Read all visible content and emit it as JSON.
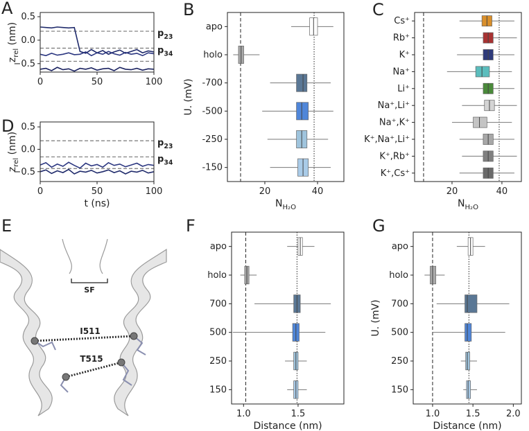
{
  "chart_data": [
    {
      "type": "line",
      "panel_label": "A",
      "ylabel": [
        "z",
        "rel",
        " (nm)"
      ],
      "x": [
        0,
        5,
        10,
        15,
        20,
        25,
        30,
        35,
        40,
        45,
        50,
        55,
        60,
        65,
        70,
        75,
        80,
        85,
        90,
        95,
        100
      ],
      "xlim": [
        0,
        100
      ],
      "xticks": [
        0,
        50,
        100
      ],
      "ylim": [
        -0.68,
        0.59
      ],
      "yticks": [
        0.5,
        {
          "value": 0,
          "label": "0.0"
        },
        {
          "value": -0.5,
          "label": "−0.5"
        }
      ],
      "series": [
        {
          "color": "#1f2a6b",
          "values": [
            0.28,
            0.27,
            0.26,
            0.28,
            0.27,
            0.26,
            0.27,
            -0.24,
            -0.28,
            -0.2,
            -0.27,
            -0.22,
            -0.3,
            -0.25,
            -0.21,
            -0.28,
            -0.24,
            -0.2,
            -0.27,
            -0.23,
            -0.25
          ]
        },
        {
          "color": "#2b3680",
          "values": [
            -0.3,
            -0.33,
            -0.28,
            -0.32,
            -0.3,
            -0.27,
            -0.31,
            -0.3,
            -0.25,
            -0.33,
            -0.27,
            -0.3,
            -0.24,
            -0.29,
            -0.32,
            -0.26,
            -0.3,
            -0.28,
            -0.33,
            -0.27,
            -0.29
          ]
        },
        {
          "color": "#1a2260",
          "values": [
            -0.62,
            -0.6,
            -0.65,
            -0.58,
            -0.63,
            -0.61,
            -0.66,
            -0.6,
            -0.62,
            -0.59,
            -0.64,
            -0.61,
            -0.6,
            -0.65,
            -0.58,
            -0.62,
            -0.63,
            -0.6,
            -0.64,
            -0.61,
            -0.62
          ]
        }
      ],
      "ref_lines": [
        {
          "value": 0.19,
          "label": [
            "p",
            "23"
          ]
        },
        {
          "value": -0.17,
          "label": [
            "p",
            "34"
          ]
        },
        {
          "value": -0.45
        }
      ]
    },
    {
      "type": "line",
      "panel_label": "D",
      "ylabel": [
        "z",
        "rel",
        " (nm)"
      ],
      "xlabel": "t (ns)",
      "x": [
        0,
        5,
        10,
        15,
        20,
        25,
        30,
        35,
        40,
        45,
        50,
        55,
        60,
        65,
        70,
        75,
        80,
        85,
        90,
        95,
        100
      ],
      "xlim": [
        0,
        100
      ],
      "xticks": [
        0,
        50,
        100
      ],
      "ylim": [
        -0.72,
        0.61
      ],
      "yticks": [
        0.5,
        {
          "value": 0,
          "label": "0.0"
        },
        {
          "value": -0.5,
          "label": "−0.5"
        }
      ],
      "series": [
        {
          "color": "#2b3680",
          "values": [
            -0.35,
            -0.3,
            -0.4,
            -0.33,
            -0.38,
            -0.29,
            -0.36,
            -0.42,
            -0.31,
            -0.37,
            -0.34,
            -0.4,
            -0.3,
            -0.36,
            -0.33,
            -0.39,
            -0.35,
            -0.31,
            -0.38,
            -0.34,
            -0.36
          ]
        },
        {
          "color": "#1f2a6b",
          "values": [
            -0.5,
            -0.46,
            -0.54,
            -0.48,
            -0.52,
            -0.45,
            -0.55,
            -0.49,
            -0.51,
            -0.47,
            -0.53,
            -0.5,
            -0.46,
            -0.52,
            -0.48,
            -0.55,
            -0.49,
            -0.51,
            -0.47,
            -0.53,
            -0.5
          ]
        }
      ],
      "ref_lines": [
        {
          "value": 0.19,
          "label": [
            "p",
            "23"
          ]
        },
        {
          "value": -0.17,
          "label": [
            "p",
            "34"
          ]
        },
        {
          "value": -0.43
        }
      ]
    },
    {
      "type": "boxen",
      "panel_label": "B",
      "ylabel": "U. (mV)",
      "xlabel": [
        "N",
        "H₂O"
      ],
      "categories": [
        "apo",
        "holo",
        "-700",
        "-500",
        "-250",
        "-150"
      ],
      "colors": [
        "#ffffff",
        "#a9a9a9",
        "#5a7795",
        "#4f86d9",
        "#9fc4dd",
        "#a9cbe8"
      ],
      "median": [
        38.5,
        11,
        34.5,
        34,
        34,
        34.5
      ],
      "q1": [
        37,
        10,
        32,
        32,
        32,
        32.5
      ],
      "q3": [
        40,
        12,
        36,
        36.5,
        36,
        36.5
      ],
      "min": [
        30,
        8,
        22,
        19,
        21,
        22
      ],
      "max": [
        46,
        18,
        45,
        46,
        44,
        45
      ],
      "xlim": [
        5.8,
        50
      ],
      "xticks": [
        20,
        40
      ],
      "ref_lines": [
        {
          "value": 10.8,
          "style": "dashed"
        },
        {
          "value": 38.7,
          "style": "dotted"
        }
      ]
    },
    {
      "type": "boxen",
      "panel_label": "C",
      "xlabel": [
        "N",
        "H₂O"
      ],
      "categories": [
        "Cs⁺",
        "Rb⁺",
        "K⁺",
        "Na⁺",
        "Li⁺",
        "Na⁺,Li⁺",
        "Na⁺,K⁺",
        "K⁺,Na⁺,Li⁺",
        "K⁺,Rb⁺",
        "K⁺,Cs⁺"
      ],
      "colors": [
        "#d98f2b",
        "#a83232",
        "#2e3a7a",
        "#5bbdbd",
        "#4a8a3a",
        "#d4d4d4",
        "#c4c4c4",
        "#a8a8a8",
        "#808080",
        "#6a6a6a"
      ],
      "median": [
        34,
        34.5,
        34.5,
        32,
        34.5,
        35,
        31,
        34.5,
        34.5,
        34.5
      ],
      "q1": [
        32,
        32.5,
        32.5,
        29.5,
        32.5,
        33,
        28.5,
        32.5,
        32.5,
        32.5
      ],
      "q3": [
        36,
        36.5,
        36.5,
        35,
        36.5,
        37,
        34,
        36.5,
        36.5,
        36.5
      ],
      "min": [
        23,
        23,
        22,
        18,
        23,
        24,
        20,
        23,
        24,
        23
      ],
      "max": [
        45,
        46,
        45,
        44,
        45,
        46,
        44,
        45,
        46,
        45
      ],
      "xlim": [
        5,
        47.8
      ],
      "xticks": [
        20,
        40
      ],
      "ref_lines": [
        {
          "value": 8.6,
          "style": "dashed"
        },
        {
          "value": 38.9,
          "style": "dotted"
        }
      ]
    },
    {
      "type": "boxen",
      "panel_label": "F",
      "xlabel": "Distance (nm)",
      "categories": [
        "apo",
        "holo",
        "700",
        "500",
        "250",
        "150"
      ],
      "colors": [
        "#ffffff",
        "#a9a9a9",
        "#5a7795",
        "#4f86d9",
        "#9fc4dd",
        "#a9cbe8"
      ],
      "median": [
        1.52,
        1.03,
        1.49,
        1.48,
        1.48,
        1.48
      ],
      "q1": [
        1.5,
        1.01,
        1.46,
        1.45,
        1.46,
        1.46
      ],
      "q3": [
        1.54,
        1.05,
        1.52,
        1.51,
        1.5,
        1.5
      ],
      "min": [
        1.4,
        0.97,
        1.1,
        0.9,
        1.38,
        1.4
      ],
      "max": [
        1.65,
        1.12,
        1.8,
        1.75,
        1.58,
        1.58
      ],
      "xlim": [
        0.89,
        1.92
      ],
      "xticks": [
        {
          "value": 1,
          "label": "1.0"
        },
        1.5
      ],
      "ref_lines": [
        {
          "value": 1.02,
          "style": "dashed"
        },
        {
          "value": 1.49,
          "style": "dotted"
        }
      ]
    },
    {
      "type": "boxen",
      "panel_label": "G",
      "ylabel": "U. (mV)",
      "xlabel": "Distance (nm)",
      "categories": [
        "apo",
        "holo",
        "700",
        "500",
        "250",
        "150"
      ],
      "colors": [
        "#ffffff",
        "#a9a9a9",
        "#5a7795",
        "#4f86d9",
        "#9fc4dd",
        "#a9cbe8"
      ],
      "median": [
        1.47,
        1.0,
        1.43,
        1.43,
        1.43,
        1.44
      ],
      "q1": [
        1.44,
        0.97,
        1.4,
        1.4,
        1.41,
        1.42
      ],
      "q3": [
        1.5,
        1.04,
        1.55,
        1.48,
        1.46,
        1.47
      ],
      "min": [
        1.3,
        0.9,
        1.05,
        1.0,
        1.35,
        1.38
      ],
      "max": [
        1.65,
        1.15,
        1.95,
        1.9,
        1.55,
        1.55
      ],
      "xlim": [
        0.76,
        2.1
      ],
      "xticks": [
        {
          "value": 1,
          "label": "1.0"
        },
        1.5,
        {
          "value": 2,
          "label": "2.0"
        }
      ],
      "ref_lines": [
        {
          "value": 1.0,
          "style": "dashed"
        },
        {
          "value": 1.45,
          "style": "dotted"
        }
      ]
    }
  ],
  "structure_panel": {
    "panel_label": "E",
    "annotations": [
      "SF",
      "I511",
      "T515"
    ]
  }
}
